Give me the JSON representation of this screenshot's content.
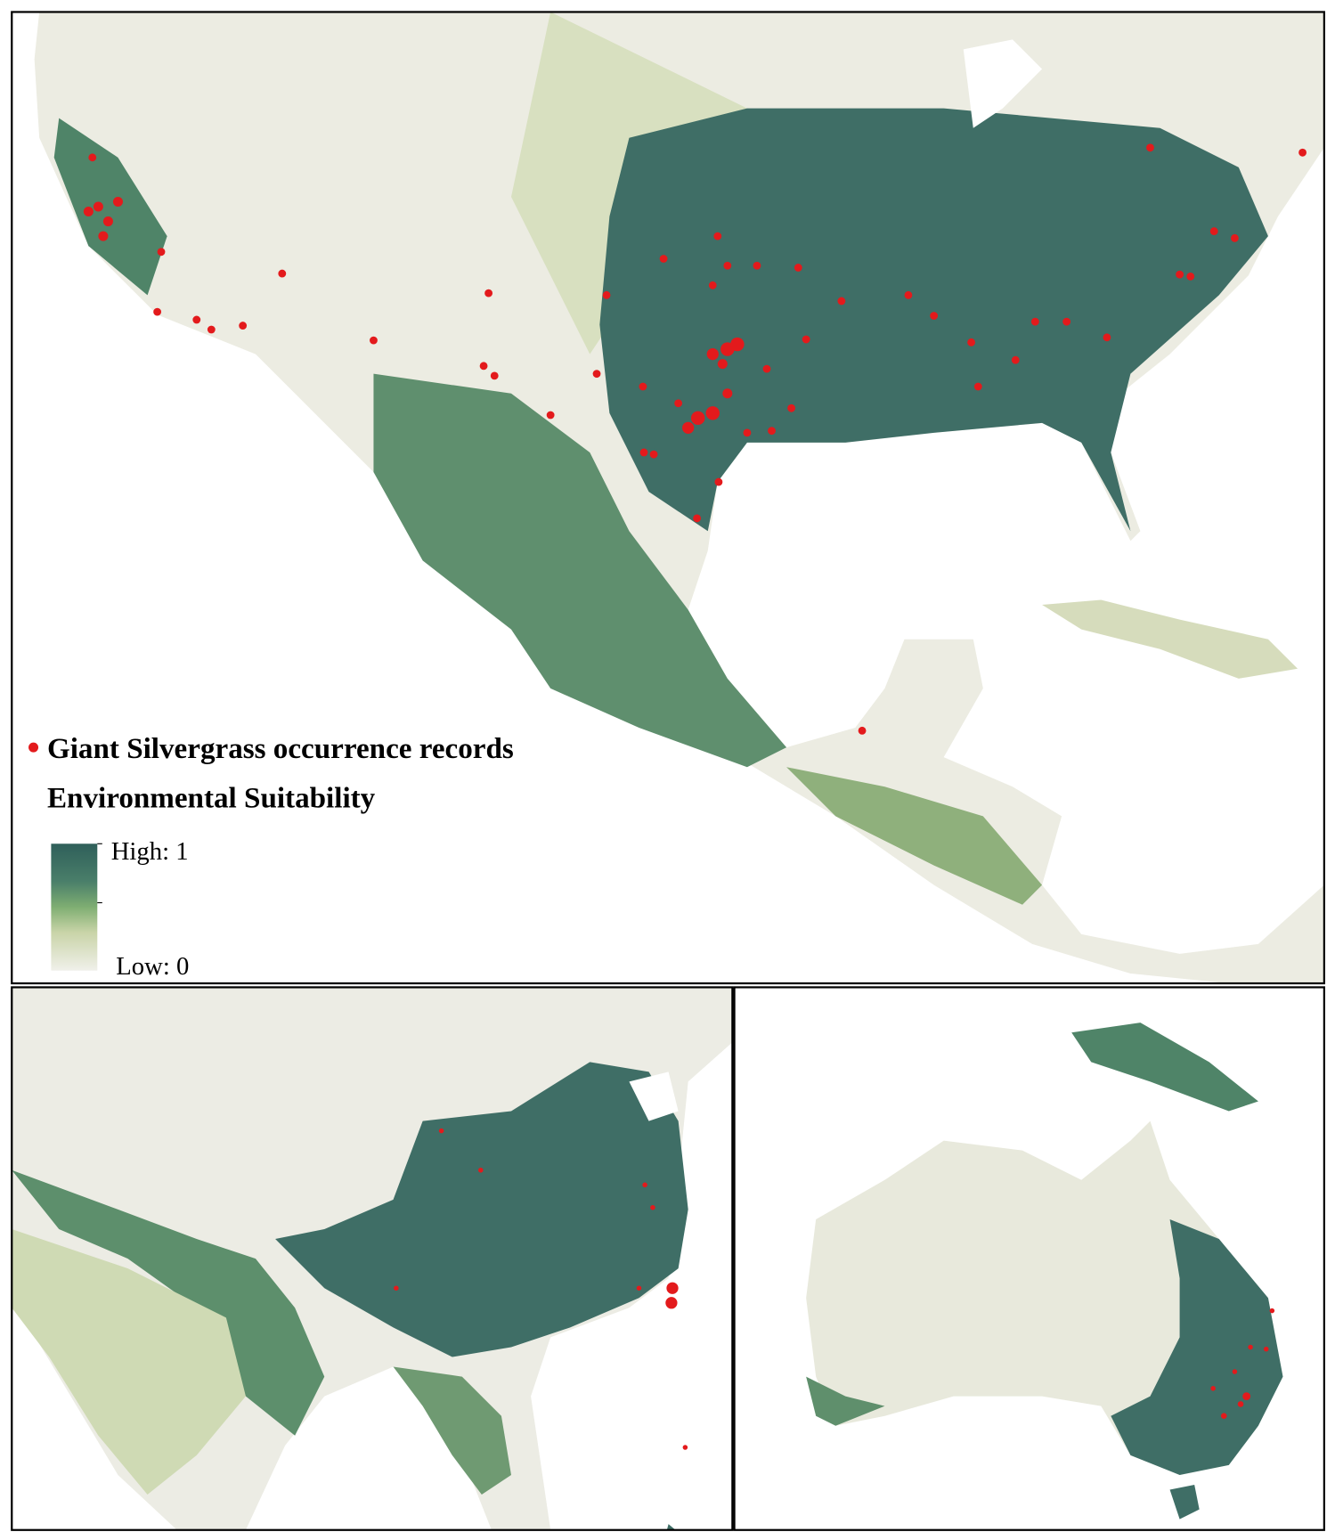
{
  "legend": {
    "occurrence_label": "Giant Silvergrass occurrence records",
    "suitability_title": "Environmental Suitability",
    "high_label": "High: 1",
    "low_label": "Low: 0"
  }
}
